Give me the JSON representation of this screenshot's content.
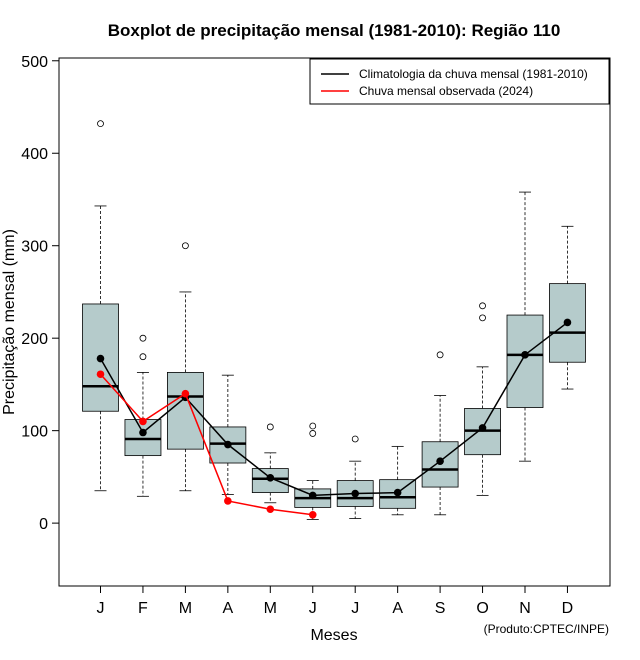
{
  "chart_data": {
    "type": "boxplot",
    "title": "Boxplot de precipitação mensal (1981-2010): Região 110",
    "xlabel": "Meses",
    "ylabel": "Precipitação mensal (mm)",
    "ylim": [
      -68,
      503
    ],
    "yticks": [
      0,
      100,
      200,
      300,
      400,
      500
    ],
    "credit": "(Produto:CPTEC/INPE)",
    "categories": [
      "J",
      "F",
      "M",
      "A",
      "M",
      "J",
      "J",
      "A",
      "S",
      "O",
      "N",
      "D"
    ],
    "boxes": [
      {
        "low": 35,
        "q1": 121,
        "median": 148,
        "q3": 237,
        "high": 343,
        "outliers": [
          432
        ]
      },
      {
        "low": 29,
        "q1": 73,
        "median": 91,
        "q3": 112,
        "high": 163,
        "outliers": [
          180,
          200
        ]
      },
      {
        "low": 35,
        "q1": 80,
        "median": 137,
        "q3": 163,
        "high": 250,
        "outliers": [
          300
        ]
      },
      {
        "low": 31,
        "q1": 65,
        "median": 86,
        "q3": 104,
        "high": 160,
        "outliers": []
      },
      {
        "low": 22,
        "q1": 33,
        "median": 48,
        "q3": 59,
        "high": 76,
        "outliers": [
          104
        ]
      },
      {
        "low": 4,
        "q1": 17,
        "median": 27,
        "q3": 37,
        "high": 46,
        "outliers": [
          97,
          105
        ]
      },
      {
        "low": 5,
        "q1": 18,
        "median": 27,
        "q3": 46,
        "high": 67,
        "outliers": [
          91
        ]
      },
      {
        "low": 9,
        "q1": 16,
        "median": 28,
        "q3": 47,
        "high": 83,
        "outliers": []
      },
      {
        "low": 9,
        "q1": 39,
        "median": 58,
        "q3": 88,
        "high": 138,
        "outliers": [
          182
        ]
      },
      {
        "low": 30,
        "q1": 74,
        "median": 100,
        "q3": 124,
        "high": 169,
        "outliers": [
          222,
          235
        ]
      },
      {
        "low": 67,
        "q1": 125,
        "median": 182,
        "q3": 225,
        "high": 358,
        "outliers": []
      },
      {
        "low": 145,
        "q1": 174,
        "median": 206,
        "q3": 259,
        "high": 321,
        "outliers": []
      }
    ],
    "series": [
      {
        "name": "Climatologia da chuva mensal (1981-2010)",
        "color": "#000000",
        "values": [
          178,
          98,
          136,
          85,
          49,
          30,
          32,
          33,
          67,
          103,
          182,
          217
        ]
      },
      {
        "name": "Chuva mensal observada (2024)",
        "color": "#ff0000",
        "values": [
          161,
          110,
          140,
          24,
          15,
          9
        ]
      }
    ],
    "box_fill": "#b5cbcb",
    "legend_position": "top-right"
  }
}
